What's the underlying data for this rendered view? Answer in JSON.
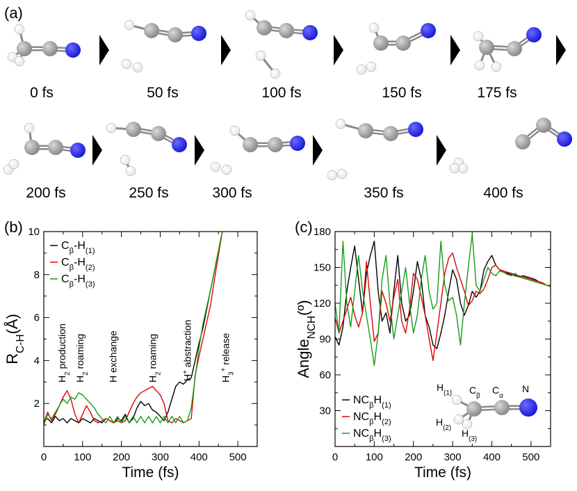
{
  "panel_a": {
    "label": "(a)",
    "row1": [
      "0 fs",
      "50 fs",
      "100 fs",
      "150 fs",
      "175 fs"
    ],
    "row2": [
      "200 fs",
      "250 fs",
      "300 fs",
      "350 fs",
      "400 fs"
    ],
    "colors": {
      "carbon": "#8a8a8a",
      "nitrogen": "#1b1bd8",
      "hydrogen": "#e6e6e6"
    }
  },
  "chart_data": [
    {
      "type": "line",
      "panel": "(b)",
      "xlabel": "Time (fs)",
      "ylabel": "R",
      "ylabel_sub": "C-H",
      "ylabel_unit": "(Å)",
      "xlim": [
        0,
        550
      ],
      "ylim": [
        0,
        10
      ],
      "xticks": [
        "0",
        "100",
        "200",
        "300",
        "400",
        "500"
      ],
      "yticks": [
        "2",
        "4",
        "6",
        "8",
        "10"
      ],
      "legend": [
        {
          "base": "C",
          "sub1": "β",
          "mid": "-H",
          "sub2": "(1)",
          "color": "#000000"
        },
        {
          "base": "C",
          "sub1": "β",
          "mid": "-H",
          "sub2": "(2)",
          "color": "#e00000"
        },
        {
          "base": "C",
          "sub1": "β",
          "mid": "-H",
          "sub2": "(3)",
          "color": "#1a9a1a"
        }
      ],
      "annotations": [
        {
          "main": "H",
          "sub": "2",
          "rest": " production",
          "x": 48
        },
        {
          "main": "H",
          "sub": "2",
          "rest": " roaming",
          "x": 95
        },
        {
          "main": "H exchange",
          "sub": "",
          "rest": "",
          "x": 180
        },
        {
          "main": "H",
          "sub": "2",
          "rest": " roaming",
          "x": 282
        },
        {
          "main": "H",
          "sup": "+",
          "rest": " abstraction",
          "x": 372
        },
        {
          "main": "H",
          "sub": "3",
          "sup": "+",
          "rest": " release",
          "x": 470
        }
      ],
      "series": [
        {
          "name": "Cβ-H(1)",
          "color": "#000000",
          "x": [
            0,
            10,
            20,
            30,
            40,
            50,
            60,
            70,
            80,
            90,
            100,
            110,
            120,
            130,
            140,
            150,
            160,
            170,
            180,
            190,
            200,
            210,
            220,
            230,
            240,
            250,
            260,
            270,
            280,
            290,
            300,
            310,
            320,
            330,
            340,
            350,
            360,
            370,
            380,
            390,
            400,
            410,
            420,
            430,
            440,
            450,
            460
          ],
          "y": [
            1.2,
            1.3,
            1.1,
            1.4,
            1.2,
            1.3,
            1.1,
            1.3,
            1.2,
            1.1,
            1.3,
            1.2,
            1.1,
            1.3,
            1.2,
            1.1,
            1.3,
            1.2,
            1.1,
            1.3,
            1.2,
            1.5,
            1.1,
            1.3,
            1.8,
            2.1,
            1.9,
            2.0,
            1.7,
            1.6,
            1.4,
            1.2,
            1.6,
            2.2,
            2.8,
            3.0,
            2.9,
            3.1,
            3.2,
            4.0,
            4.8,
            5.5,
            6.4,
            7.3,
            8.2,
            9.1,
            10.0
          ]
        },
        {
          "name": "Cβ-H(2)",
          "color": "#e00000",
          "x": [
            0,
            10,
            20,
            30,
            40,
            50,
            60,
            70,
            80,
            90,
            100,
            110,
            120,
            130,
            140,
            150,
            160,
            170,
            180,
            190,
            200,
            210,
            220,
            230,
            240,
            250,
            260,
            270,
            280,
            290,
            300,
            310,
            320,
            330,
            340,
            350,
            360,
            370,
            380,
            390,
            400,
            410,
            420,
            430,
            440,
            450,
            460
          ],
          "y": [
            1.1,
            1.6,
            1.2,
            1.5,
            1.9,
            2.3,
            2.6,
            2.2,
            1.5,
            1.1,
            1.5,
            1.9,
            1.6,
            1.2,
            1.1,
            1.2,
            1.3,
            1.2,
            1.1,
            1.2,
            1.1,
            1.2,
            1.6,
            2.0,
            2.3,
            2.5,
            2.6,
            2.7,
            2.8,
            2.6,
            2.4,
            2.0,
            1.2,
            1.1,
            1.3,
            1.2,
            1.1,
            1.2,
            1.3,
            3.3,
            4.2,
            5.0,
            5.8,
            6.6,
            7.8,
            8.9,
            10.0
          ]
        },
        {
          "name": "Cβ-H(3)",
          "color": "#1a9a1a",
          "x": [
            0,
            10,
            20,
            30,
            40,
            50,
            60,
            70,
            80,
            90,
            100,
            110,
            120,
            130,
            140,
            150,
            160,
            170,
            180,
            190,
            200,
            210,
            220,
            230,
            240,
            250,
            260,
            270,
            280,
            290,
            300,
            310,
            320,
            330,
            340,
            350,
            360,
            370,
            380,
            390,
            400,
            410,
            420,
            430,
            440,
            450,
            460
          ],
          "y": [
            1.0,
            1.5,
            1.3,
            1.6,
            1.9,
            2.2,
            2.0,
            2.3,
            2.2,
            2.5,
            2.4,
            2.2,
            2.0,
            1.8,
            1.5,
            1.3,
            1.1,
            1.4,
            1.1,
            1.4,
            1.1,
            1.4,
            1.1,
            1.4,
            1.1,
            1.4,
            1.1,
            1.4,
            1.1,
            1.4,
            1.1,
            1.4,
            1.1,
            1.4,
            1.1,
            1.4,
            1.1,
            1.2,
            1.8,
            3.2,
            4.6,
            5.7,
            6.5,
            7.3,
            8.2,
            9.1,
            10.0
          ]
        }
      ]
    },
    {
      "type": "line",
      "panel": "(c)",
      "xlabel": "Time (fs)",
      "ylabel": "Angle",
      "ylabel_sub": "NCH",
      "ylabel_unit": "(º)",
      "xlim": [
        0,
        550
      ],
      "ylim": [
        0,
        180
      ],
      "xticks": [
        "0",
        "100",
        "200",
        "300",
        "400",
        "500"
      ],
      "yticks": [
        "30",
        "60",
        "90",
        "120",
        "150",
        "180"
      ],
      "legend": [
        {
          "base": "NC",
          "sub1": "β",
          "mid": "H",
          "sub2": "(1)",
          "color": "#000000"
        },
        {
          "base": "NC",
          "sub1": "β",
          "mid": "H",
          "sub2": "(2)",
          "color": "#e00000"
        },
        {
          "base": "NC",
          "sub1": "β",
          "mid": "H",
          "sub2": "(3)",
          "color": "#1a9a1a"
        }
      ],
      "inset": {
        "h1": "H(1)",
        "cb": "Cβ",
        "ca": "Cα",
        "n": "N",
        "h2": "H(2)",
        "h3": "H(3)"
      },
      "series": [
        {
          "name": "NCβH(1)",
          "color": "#000000",
          "x": [
            0,
            10,
            20,
            30,
            40,
            50,
            60,
            70,
            80,
            90,
            100,
            110,
            120,
            130,
            140,
            150,
            160,
            170,
            180,
            190,
            200,
            210,
            220,
            230,
            240,
            250,
            260,
            270,
            280,
            290,
            300,
            310,
            320,
            330,
            340,
            350,
            360,
            370,
            380,
            390,
            400,
            410,
            420,
            430,
            440,
            450,
            460,
            470,
            480,
            490,
            500,
            510,
            520,
            530,
            540,
            550
          ],
          "y": [
            92,
            85,
            100,
            130,
            150,
            168,
            140,
            112,
            145,
            160,
            172,
            130,
            105,
            112,
            95,
            130,
            160,
            120,
            105,
            110,
            130,
            155,
            140,
            110,
            100,
            85,
            82,
            95,
            110,
            130,
            148,
            140,
            120,
            110,
            118,
            130,
            125,
            130,
            148,
            155,
            160,
            152,
            148,
            146,
            145,
            144,
            143,
            142,
            143,
            142,
            141,
            140,
            138,
            137,
            135,
            134
          ]
        },
        {
          "name": "NCβH(2)",
          "color": "#e00000",
          "x": [
            0,
            10,
            20,
            30,
            40,
            50,
            60,
            70,
            80,
            90,
            100,
            110,
            120,
            130,
            140,
            150,
            160,
            170,
            180,
            190,
            200,
            210,
            220,
            230,
            240,
            250,
            260,
            270,
            280,
            290,
            300,
            310,
            320,
            330,
            340,
            350,
            360,
            370,
            380,
            390,
            400,
            410,
            420,
            430,
            440,
            450,
            460,
            470,
            480,
            490,
            500,
            510,
            520,
            530,
            540,
            550
          ],
          "y": [
            108,
            95,
            105,
            115,
            125,
            110,
            100,
            112,
            155,
            120,
            88,
            95,
            130,
            120,
            105,
            125,
            140,
            105,
            95,
            115,
            145,
            140,
            125,
            110,
            90,
            72,
            95,
            120,
            145,
            158,
            162,
            150,
            140,
            130,
            118,
            122,
            130,
            128,
            132,
            140,
            150,
            152,
            148,
            147,
            146,
            145,
            144,
            143,
            142,
            141,
            140,
            139,
            138,
            137,
            135,
            134
          ]
        },
        {
          "name": "NCβH(3)",
          "color": "#1a9a1a",
          "x": [
            0,
            10,
            20,
            30,
            40,
            50,
            60,
            70,
            80,
            90,
            100,
            110,
            120,
            130,
            140,
            150,
            160,
            170,
            180,
            190,
            200,
            210,
            220,
            230,
            240,
            250,
            260,
            270,
            280,
            290,
            300,
            310,
            320,
            330,
            340,
            350,
            360,
            370,
            380,
            390,
            400,
            410,
            420,
            430,
            440,
            450,
            460,
            470,
            480,
            490,
            500,
            510,
            520,
            530,
            540,
            550
          ],
          "y": [
            120,
            95,
            172,
            120,
            100,
            130,
            160,
            130,
            110,
            90,
            68,
            95,
            140,
            160,
            120,
            90,
            110,
            130,
            150,
            120,
            95,
            110,
            140,
            160,
            130,
            115,
            120,
            172,
            135,
            122,
            125,
            110,
            85,
            120,
            150,
            178,
            135,
            130,
            140,
            150,
            145,
            143,
            147,
            146,
            144,
            143,
            145,
            142,
            141,
            140,
            139,
            138,
            137,
            136,
            135,
            134
          ]
        }
      ]
    }
  ]
}
